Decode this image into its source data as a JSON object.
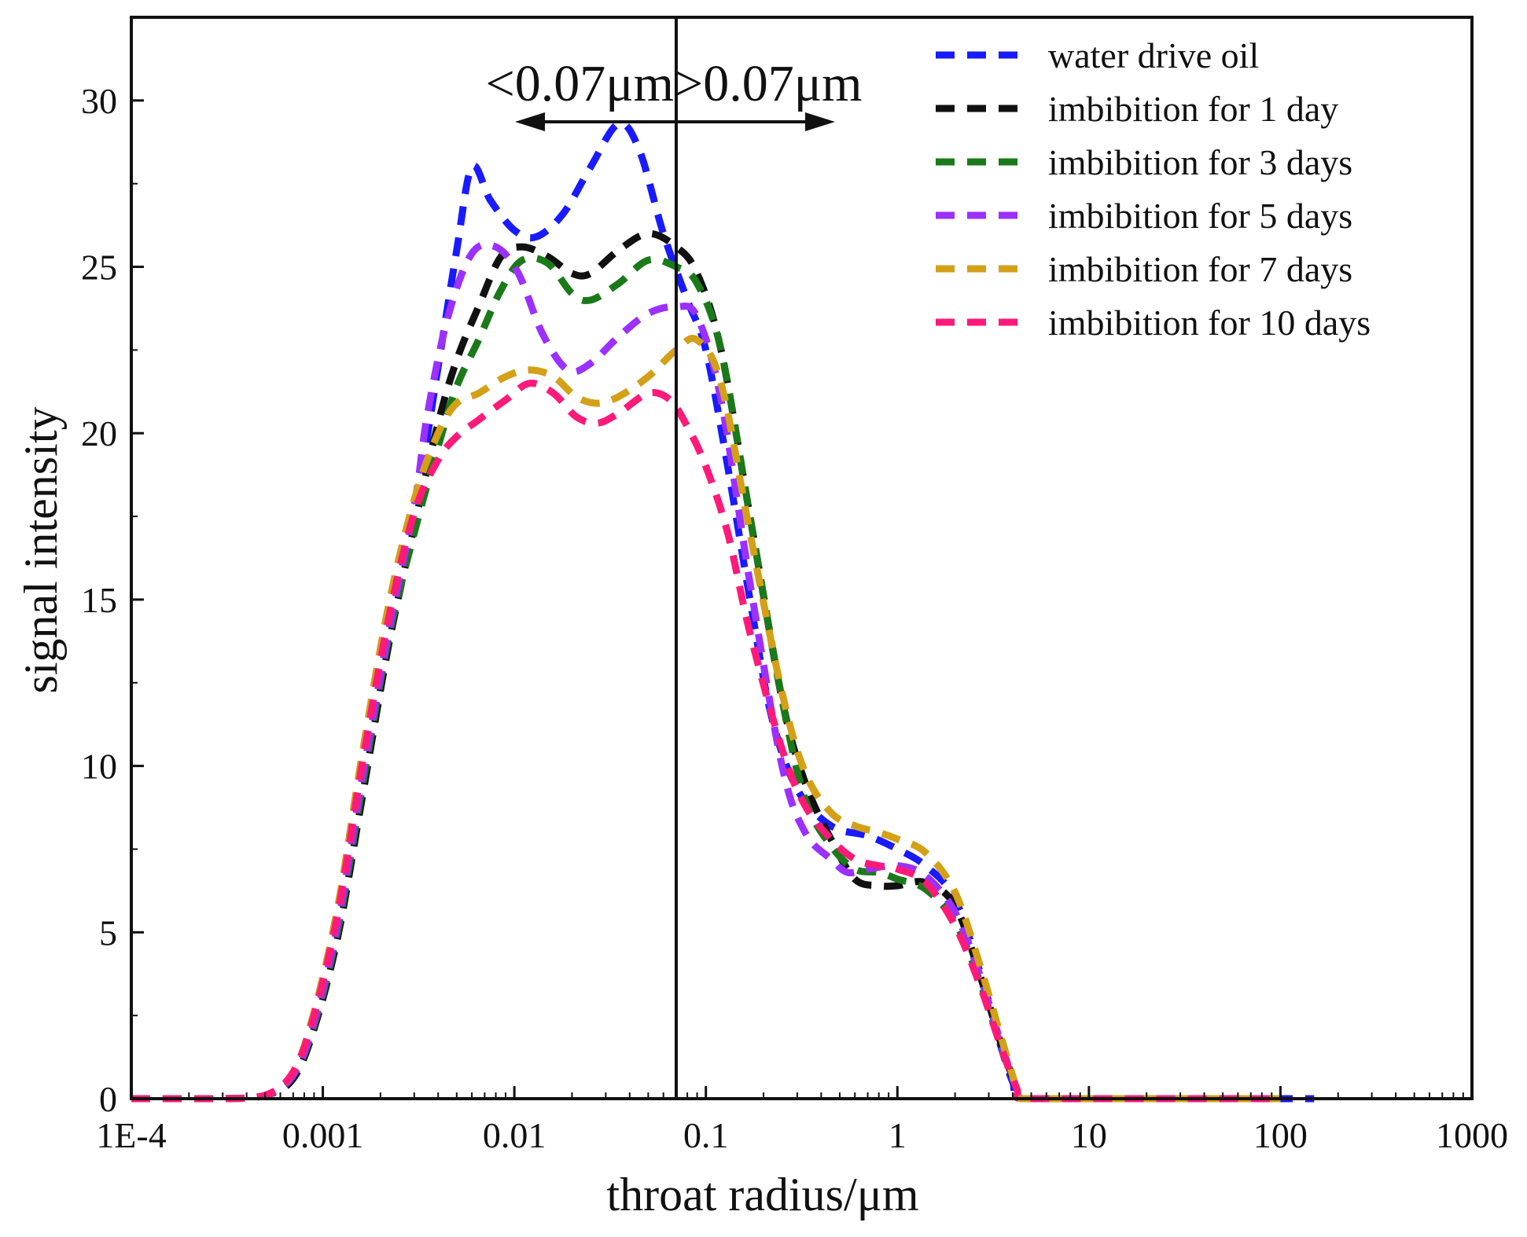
{
  "chart_data": {
    "type": "line",
    "title": "",
    "xlabel": "throat radius/μm",
    "ylabel": "signal intensity",
    "xscale": "log",
    "xlim": [
      0.0001,
      1000
    ],
    "ylim": [
      0,
      32.5
    ],
    "x_ticks": [
      {
        "value": 0.0001,
        "label": "1E-4"
      },
      {
        "value": 0.001,
        "label": "0.001"
      },
      {
        "value": 0.01,
        "label": "0.01"
      },
      {
        "value": 0.1,
        "label": "0.1"
      },
      {
        "value": 1,
        "label": "1"
      },
      {
        "value": 10,
        "label": "10"
      },
      {
        "value": 100,
        "label": "100"
      },
      {
        "value": 1000,
        "label": "1000"
      }
    ],
    "y_ticks": [
      {
        "value": 0,
        "label": "0"
      },
      {
        "value": 5,
        "label": "5"
      },
      {
        "value": 10,
        "label": "10"
      },
      {
        "value": 15,
        "label": "15"
      },
      {
        "value": 20,
        "label": "20"
      },
      {
        "value": 25,
        "label": "25"
      },
      {
        "value": 30,
        "label": "30"
      }
    ],
    "grid": false,
    "legend_position": "top-right",
    "divider": {
      "x": 0.07,
      "left_label": "<0.07μm",
      "right_label": ">0.07μm"
    },
    "series": [
      {
        "name": "water drive oil",
        "color": "#1a1aff",
        "points": [
          [
            0.0001,
            0
          ],
          [
            0.0003,
            0
          ],
          [
            0.0005,
            0.1
          ],
          [
            0.0007,
            0.7
          ],
          [
            0.0009,
            2.3
          ],
          [
            0.0012,
            5.2
          ],
          [
            0.0016,
            9.5
          ],
          [
            0.0022,
            14.0
          ],
          [
            0.003,
            17.5
          ],
          [
            0.004,
            22.0
          ],
          [
            0.005,
            25.5
          ],
          [
            0.006,
            28.0
          ],
          [
            0.0075,
            27.0
          ],
          [
            0.01,
            26.1
          ],
          [
            0.013,
            25.9
          ],
          [
            0.018,
            26.6
          ],
          [
            0.025,
            28.0
          ],
          [
            0.035,
            29.3
          ],
          [
            0.045,
            28.5
          ],
          [
            0.06,
            26.0
          ],
          [
            0.08,
            24.0
          ],
          [
            0.1,
            22.5
          ],
          [
            0.13,
            19.0
          ],
          [
            0.17,
            15.0
          ],
          [
            0.22,
            11.5
          ],
          [
            0.3,
            9.3
          ],
          [
            0.45,
            8.2
          ],
          [
            0.7,
            7.9
          ],
          [
            1.0,
            7.5
          ],
          [
            1.4,
            7.0
          ],
          [
            2.0,
            6.0
          ],
          [
            2.8,
            3.5
          ],
          [
            3.5,
            1.5
          ],
          [
            4.0,
            0.5
          ],
          [
            4.5,
            0
          ],
          [
            10,
            0
          ],
          [
            50,
            0
          ],
          [
            100,
            0
          ],
          [
            150,
            0
          ]
        ]
      },
      {
        "name": "imbibition for 1 day",
        "color": "#111111",
        "points": [
          [
            0.0001,
            0
          ],
          [
            0.0003,
            0
          ],
          [
            0.0005,
            0.1
          ],
          [
            0.0007,
            0.6
          ],
          [
            0.0009,
            2.1
          ],
          [
            0.0012,
            4.9
          ],
          [
            0.0016,
            9.0
          ],
          [
            0.0022,
            13.6
          ],
          [
            0.003,
            17.2
          ],
          [
            0.004,
            20.3
          ],
          [
            0.005,
            22.2
          ],
          [
            0.0065,
            23.8
          ],
          [
            0.0085,
            25.3
          ],
          [
            0.011,
            25.6
          ],
          [
            0.015,
            25.3
          ],
          [
            0.02,
            24.8
          ],
          [
            0.025,
            24.8
          ],
          [
            0.035,
            25.5
          ],
          [
            0.05,
            26.0
          ],
          [
            0.07,
            25.6
          ],
          [
            0.09,
            24.8
          ],
          [
            0.12,
            22.5
          ],
          [
            0.17,
            17.5
          ],
          [
            0.25,
            12.0
          ],
          [
            0.33,
            9.5
          ],
          [
            0.45,
            7.8
          ],
          [
            0.6,
            6.6
          ],
          [
            0.8,
            6.4
          ],
          [
            1.0,
            6.4
          ],
          [
            1.4,
            6.5
          ],
          [
            2.0,
            5.8
          ],
          [
            2.7,
            3.7
          ],
          [
            3.5,
            1.6
          ],
          [
            4.2,
            0.3
          ],
          [
            4.5,
            0
          ],
          [
            10,
            0
          ],
          [
            50,
            0
          ],
          [
            100,
            0
          ]
        ]
      },
      {
        "name": "imbibition for 3 days",
        "color": "#1a7a1a",
        "points": [
          [
            0.0001,
            0
          ],
          [
            0.0003,
            0
          ],
          [
            0.0005,
            0.1
          ],
          [
            0.0007,
            0.7
          ],
          [
            0.0009,
            2.2
          ],
          [
            0.0012,
            5.1
          ],
          [
            0.0016,
            9.3
          ],
          [
            0.0022,
            13.8
          ],
          [
            0.003,
            17.0
          ],
          [
            0.004,
            19.6
          ],
          [
            0.005,
            21.4
          ],
          [
            0.0065,
            22.8
          ],
          [
            0.0085,
            24.3
          ],
          [
            0.011,
            25.2
          ],
          [
            0.015,
            25.1
          ],
          [
            0.02,
            24.2
          ],
          [
            0.025,
            24.0
          ],
          [
            0.035,
            24.5
          ],
          [
            0.05,
            25.2
          ],
          [
            0.07,
            25.0
          ],
          [
            0.09,
            24.5
          ],
          [
            0.12,
            22.5
          ],
          [
            0.17,
            17.5
          ],
          [
            0.25,
            12.0
          ],
          [
            0.33,
            9.0
          ],
          [
            0.45,
            7.6
          ],
          [
            0.6,
            6.9
          ],
          [
            0.8,
            6.8
          ],
          [
            1.0,
            6.6
          ],
          [
            1.4,
            6.3
          ],
          [
            2.0,
            5.3
          ],
          [
            2.7,
            3.5
          ],
          [
            3.5,
            1.5
          ],
          [
            4.2,
            0.3
          ],
          [
            4.5,
            0
          ],
          [
            10,
            0
          ],
          [
            50,
            0
          ],
          [
            100,
            0
          ]
        ]
      },
      {
        "name": "imbibition for 5 days",
        "color": "#9b30ff",
        "points": [
          [
            0.0001,
            0
          ],
          [
            0.0003,
            0
          ],
          [
            0.0005,
            0.1
          ],
          [
            0.0007,
            0.7
          ],
          [
            0.0009,
            2.3
          ],
          [
            0.0012,
            5.3
          ],
          [
            0.0016,
            9.6
          ],
          [
            0.0022,
            14.0
          ],
          [
            0.003,
            17.8
          ],
          [
            0.0035,
            20.5
          ],
          [
            0.0045,
            23.5
          ],
          [
            0.006,
            25.4
          ],
          [
            0.008,
            25.6
          ],
          [
            0.0105,
            24.8
          ],
          [
            0.014,
            23.0
          ],
          [
            0.019,
            21.9
          ],
          [
            0.025,
            22.1
          ],
          [
            0.035,
            22.9
          ],
          [
            0.05,
            23.6
          ],
          [
            0.07,
            23.8
          ],
          [
            0.09,
            23.5
          ],
          [
            0.12,
            21.0
          ],
          [
            0.17,
            15.5
          ],
          [
            0.25,
            10.0
          ],
          [
            0.33,
            8.0
          ],
          [
            0.45,
            7.2
          ],
          [
            0.55,
            6.8
          ],
          [
            0.7,
            6.9
          ],
          [
            1.0,
            7.0
          ],
          [
            1.4,
            6.7
          ],
          [
            2.0,
            5.6
          ],
          [
            2.7,
            3.7
          ],
          [
            3.5,
            1.6
          ],
          [
            4.2,
            0.3
          ],
          [
            4.5,
            0
          ],
          [
            10,
            0
          ],
          [
            50,
            0
          ],
          [
            100,
            0
          ]
        ]
      },
      {
        "name": "imbibition for 7 days",
        "color": "#d4a017",
        "points": [
          [
            0.0001,
            0
          ],
          [
            0.0003,
            0
          ],
          [
            0.0005,
            0.1
          ],
          [
            0.0007,
            0.8
          ],
          [
            0.0009,
            2.6
          ],
          [
            0.0012,
            5.8
          ],
          [
            0.0016,
            10.3
          ],
          [
            0.0022,
            14.8
          ],
          [
            0.003,
            18.0
          ],
          [
            0.004,
            20.0
          ],
          [
            0.005,
            20.9
          ],
          [
            0.0065,
            21.2
          ],
          [
            0.009,
            21.7
          ],
          [
            0.012,
            21.9
          ],
          [
            0.016,
            21.7
          ],
          [
            0.021,
            21.1
          ],
          [
            0.027,
            20.9
          ],
          [
            0.035,
            21.1
          ],
          [
            0.05,
            21.7
          ],
          [
            0.07,
            22.5
          ],
          [
            0.09,
            22.8
          ],
          [
            0.12,
            21.5
          ],
          [
            0.17,
            17.0
          ],
          [
            0.25,
            12.2
          ],
          [
            0.33,
            9.8
          ],
          [
            0.45,
            8.6
          ],
          [
            0.6,
            8.2
          ],
          [
            0.8,
            8.0
          ],
          [
            1.0,
            7.8
          ],
          [
            1.4,
            7.4
          ],
          [
            2.0,
            6.2
          ],
          [
            2.7,
            4.0
          ],
          [
            3.5,
            1.8
          ],
          [
            4.2,
            0.3
          ],
          [
            4.5,
            0
          ],
          [
            10,
            0
          ],
          [
            50,
            0
          ],
          [
            100,
            0
          ]
        ]
      },
      {
        "name": "imbibition for 10 days",
        "color": "#ff1a7a",
        "points": [
          [
            0.0001,
            0
          ],
          [
            0.0003,
            0
          ],
          [
            0.0005,
            0.1
          ],
          [
            0.0007,
            0.8
          ],
          [
            0.0009,
            2.5
          ],
          [
            0.0012,
            5.6
          ],
          [
            0.0016,
            10.0
          ],
          [
            0.0022,
            14.4
          ],
          [
            0.003,
            17.6
          ],
          [
            0.004,
            19.2
          ],
          [
            0.005,
            19.9
          ],
          [
            0.0065,
            20.4
          ],
          [
            0.009,
            21.0
          ],
          [
            0.012,
            21.5
          ],
          [
            0.016,
            21.2
          ],
          [
            0.021,
            20.5
          ],
          [
            0.027,
            20.3
          ],
          [
            0.035,
            20.6
          ],
          [
            0.05,
            21.2
          ],
          [
            0.065,
            21.0
          ],
          [
            0.08,
            20.2
          ],
          [
            0.1,
            19.0
          ],
          [
            0.13,
            17.0
          ],
          [
            0.17,
            14.0
          ],
          [
            0.25,
            10.5
          ],
          [
            0.33,
            8.8
          ],
          [
            0.45,
            7.8
          ],
          [
            0.6,
            7.2
          ],
          [
            0.8,
            7.0
          ],
          [
            1.0,
            6.9
          ],
          [
            1.4,
            6.5
          ],
          [
            2.0,
            5.2
          ],
          [
            2.7,
            3.4
          ],
          [
            3.5,
            1.5
          ],
          [
            4.2,
            0.3
          ],
          [
            4.5,
            0
          ],
          [
            10,
            0
          ],
          [
            50,
            0
          ],
          [
            100,
            0
          ]
        ]
      }
    ]
  }
}
